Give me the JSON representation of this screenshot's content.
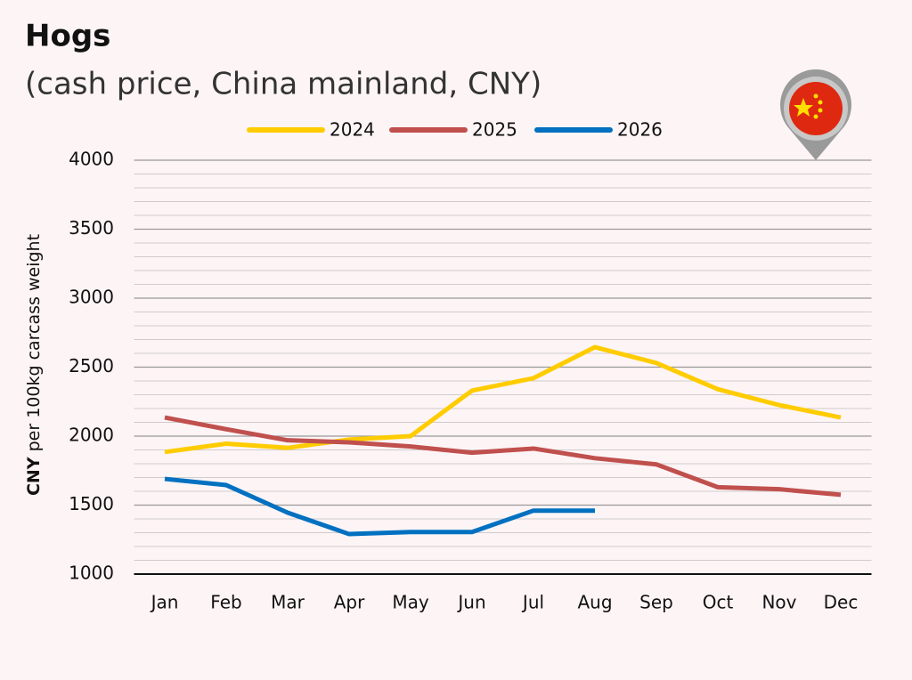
{
  "chart_data": {
    "type": "line",
    "title": "Hogs",
    "subtitle": "(cash price, China mainland, CNY)",
    "y_label_bold": "CNY",
    "y_label": " per 100kg carcass weight",
    "categories": [
      "Jan",
      "Feb",
      "Mar",
      "Apr",
      "May",
      "Jun",
      "Jul",
      "Aug",
      "Sep",
      "Oct",
      "Nov",
      "Dec"
    ],
    "series": [
      {
        "name": "2024",
        "color": "#ffcc00",
        "values": [
          1885,
          1945,
          1915,
          1975,
          2000,
          2330,
          2420,
          2645,
          2530,
          2340,
          2225,
          2135
        ]
      },
      {
        "name": "2025",
        "color": "#c0504d",
        "values": [
          2135,
          2050,
          1970,
          1955,
          1925,
          1880,
          1910,
          1840,
          1795,
          1630,
          1615,
          1575
        ]
      },
      {
        "name": "2026",
        "color": "#0070c0",
        "values": [
          1690,
          1645,
          1445,
          1290,
          1305,
          1305,
          1460,
          1460,
          null,
          null,
          null,
          null
        ]
      }
    ],
    "ylim": [
      1000,
      4000
    ],
    "yticks": [
      1000,
      1500,
      2000,
      2500,
      3000,
      3500,
      4000
    ],
    "grid": true,
    "legend": "top"
  }
}
